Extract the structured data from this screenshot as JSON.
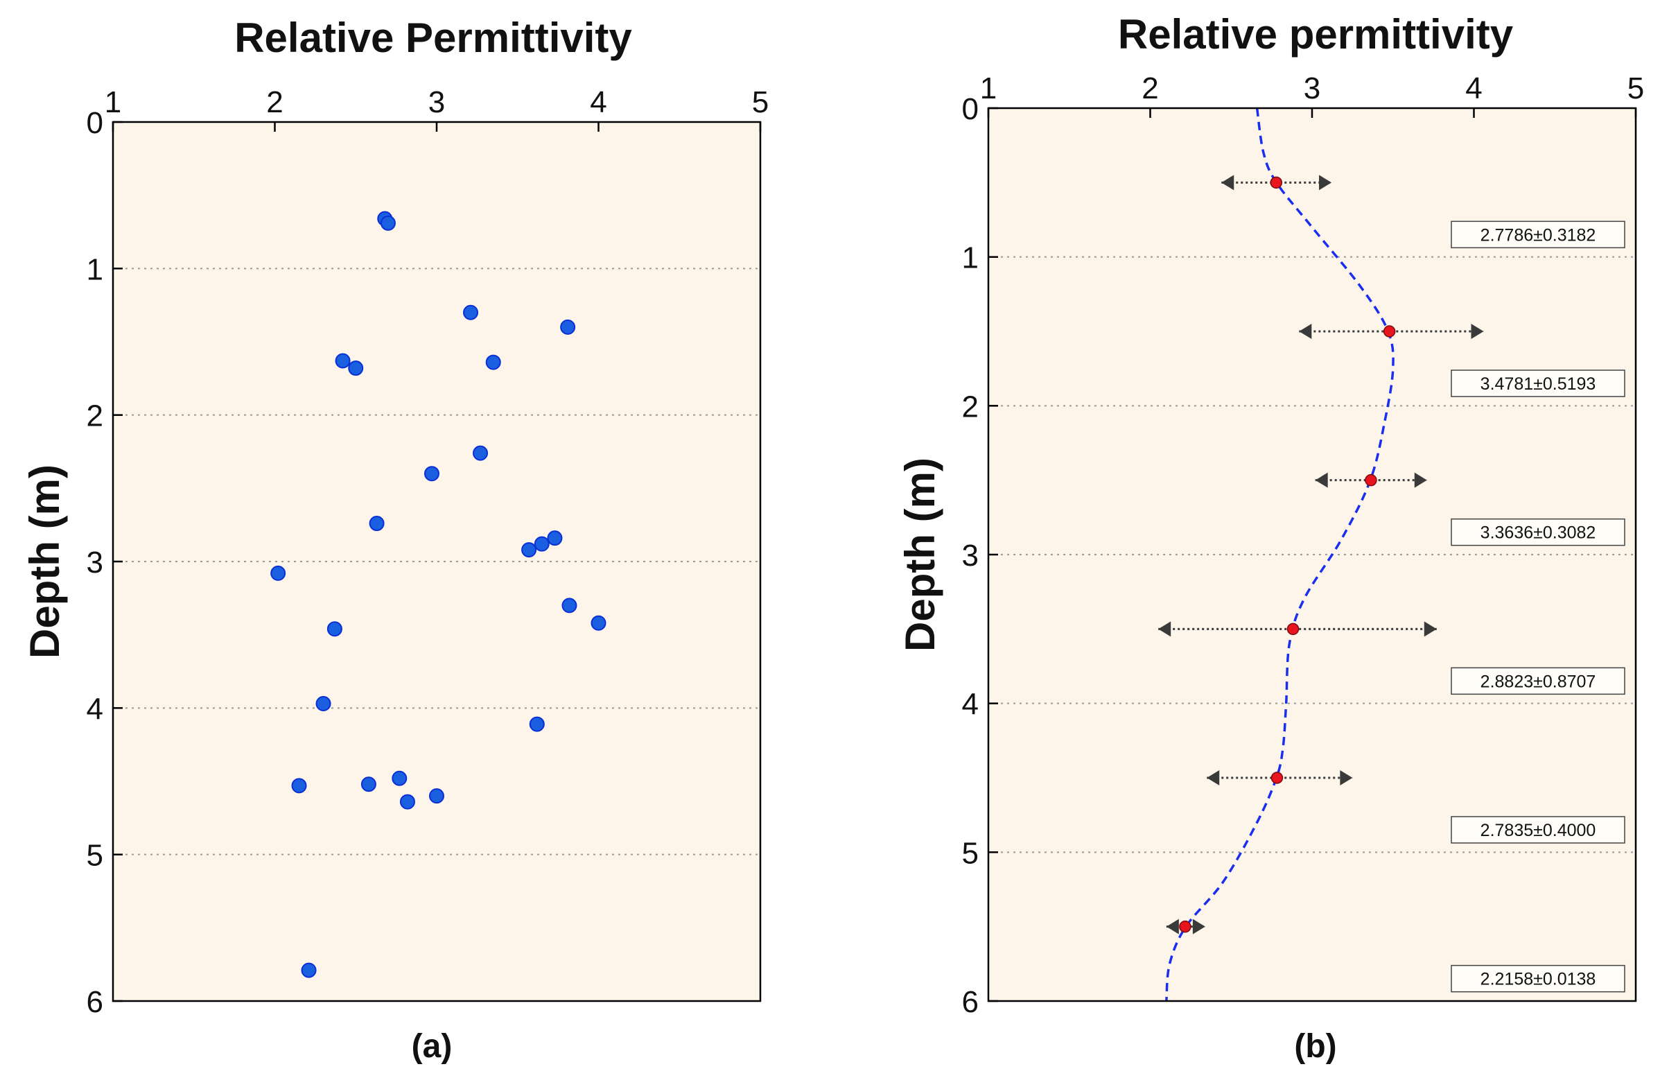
{
  "colors": {
    "plot_background": "#fdf5ea",
    "point_fill": "#1a5fe0",
    "point_edge": "#0b2fd6",
    "fit_line": "#1a2ef0",
    "mean_marker": "#e8141e",
    "error_bar": "#3a3a3a",
    "grid": "#9a9a9a"
  },
  "chart_data": [
    {
      "type": "scatter",
      "panel_label": "(a)",
      "title": "Relative Permittivity",
      "xlabel": "",
      "ylabel": "Depth (m)",
      "xlim": [
        1,
        5
      ],
      "ylim": [
        6,
        0
      ],
      "x_axis_position": "top",
      "y_reversed": true,
      "xticks": [
        1,
        2,
        3,
        4,
        5
      ],
      "yticks": [
        0,
        1,
        2,
        3,
        4,
        5,
        6
      ],
      "grid": "horizontal dotted",
      "points": [
        {
          "x": 2.68,
          "y": 0.66
        },
        {
          "x": 2.7,
          "y": 0.69
        },
        {
          "x": 3.21,
          "y": 1.3
        },
        {
          "x": 3.81,
          "y": 1.4
        },
        {
          "x": 2.42,
          "y": 1.63
        },
        {
          "x": 2.5,
          "y": 1.68
        },
        {
          "x": 3.35,
          "y": 1.64
        },
        {
          "x": 3.27,
          "y": 2.26
        },
        {
          "x": 2.97,
          "y": 2.4
        },
        {
          "x": 2.63,
          "y": 2.74
        },
        {
          "x": 3.73,
          "y": 2.84
        },
        {
          "x": 3.65,
          "y": 2.88
        },
        {
          "x": 3.57,
          "y": 2.92
        },
        {
          "x": 2.02,
          "y": 3.08
        },
        {
          "x": 3.82,
          "y": 3.3
        },
        {
          "x": 4.0,
          "y": 3.42
        },
        {
          "x": 2.37,
          "y": 3.46
        },
        {
          "x": 2.3,
          "y": 3.97
        },
        {
          "x": 3.62,
          "y": 4.11
        },
        {
          "x": 2.77,
          "y": 4.48
        },
        {
          "x": 2.15,
          "y": 4.53
        },
        {
          "x": 2.58,
          "y": 4.52
        },
        {
          "x": 3.0,
          "y": 4.6
        },
        {
          "x": 2.82,
          "y": 4.64
        },
        {
          "x": 2.21,
          "y": 5.79
        }
      ]
    },
    {
      "type": "line",
      "panel_label": "(b)",
      "title": "Relative permittivity",
      "xlabel": "",
      "ylabel": "Depth (m)",
      "xlim": [
        1,
        5
      ],
      "ylim": [
        6,
        0
      ],
      "x_axis_position": "top",
      "y_reversed": true,
      "xticks": [
        1,
        2,
        3,
        4,
        5
      ],
      "yticks": [
        0,
        1,
        2,
        3,
        4,
        5,
        6
      ],
      "grid": "horizontal dotted",
      "means": [
        {
          "depth": 0.5,
          "mean": 2.7786,
          "std": 0.3182,
          "label": "2.7786±0.3182"
        },
        {
          "depth": 1.5,
          "mean": 3.4781,
          "std": 0.5193,
          "label": "3.4781±0.5193"
        },
        {
          "depth": 2.5,
          "mean": 3.3636,
          "std": 0.3082,
          "label": "3.3636±0.3082"
        },
        {
          "depth": 3.5,
          "mean": 2.8823,
          "std": 0.8707,
          "label": "2.8823±0.8707"
        },
        {
          "depth": 4.5,
          "mean": 2.7835,
          "std": 0.4,
          "label": "2.7835±0.4000"
        },
        {
          "depth": 5.5,
          "mean": 2.2158,
          "std": 0.0138,
          "label": "2.2158±0.0138"
        }
      ],
      "error_bars": [
        {
          "depth": 0.5,
          "low": 2.44,
          "high": 3.12
        },
        {
          "depth": 1.5,
          "low": 2.92,
          "high": 4.06
        },
        {
          "depth": 2.5,
          "low": 3.02,
          "high": 3.71
        },
        {
          "depth": 3.5,
          "low": 2.05,
          "high": 3.77
        },
        {
          "depth": 4.5,
          "low": 2.35,
          "high": 3.25
        },
        {
          "depth": 5.5,
          "low": 2.1,
          "high": 2.34
        }
      ],
      "fit_curve": {
        "style": "dashed",
        "points": [
          {
            "x": 2.66,
            "y": 0.0
          },
          {
            "x": 2.7,
            "y": 0.3
          },
          {
            "x": 2.78,
            "y": 0.5
          },
          {
            "x": 3.0,
            "y": 0.8
          },
          {
            "x": 3.3,
            "y": 1.2
          },
          {
            "x": 3.47,
            "y": 1.5
          },
          {
            "x": 3.5,
            "y": 1.75
          },
          {
            "x": 3.45,
            "y": 2.1
          },
          {
            "x": 3.36,
            "y": 2.5
          },
          {
            "x": 3.18,
            "y": 2.9
          },
          {
            "x": 2.95,
            "y": 3.3
          },
          {
            "x": 2.86,
            "y": 3.6
          },
          {
            "x": 2.84,
            "y": 4.0
          },
          {
            "x": 2.82,
            "y": 4.3
          },
          {
            "x": 2.78,
            "y": 4.5
          },
          {
            "x": 2.66,
            "y": 4.8
          },
          {
            "x": 2.45,
            "y": 5.2
          },
          {
            "x": 2.22,
            "y": 5.5
          },
          {
            "x": 2.12,
            "y": 5.75
          },
          {
            "x": 2.1,
            "y": 6.0
          }
        ]
      }
    }
  ]
}
